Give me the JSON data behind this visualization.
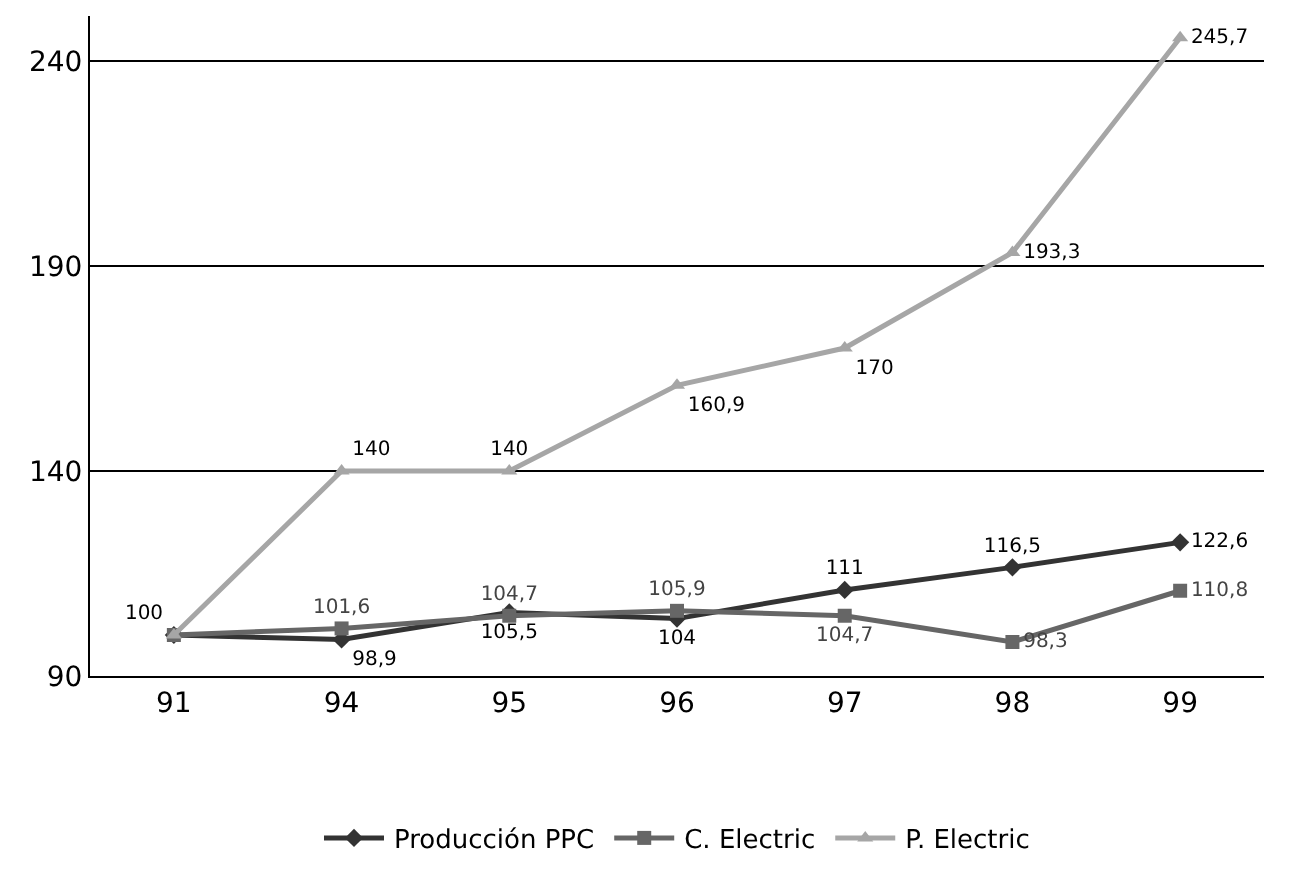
{
  "chart_data": {
    "type": "line",
    "categories": [
      "91",
      "94",
      "95",
      "96",
      "97",
      "98",
      "99"
    ],
    "series": [
      {
        "name": "Producción PPC",
        "color": "#333333",
        "marker": "diamond",
        "values": [
          100,
          98.9,
          105.5,
          104,
          111,
          116.5,
          122.6
        ],
        "value_labels": [
          "100",
          "98,9",
          "105,5",
          "104",
          "111",
          "116,5",
          "122,6"
        ]
      },
      {
        "name": "C. Electric",
        "color": "#666666",
        "marker": "square",
        "values": [
          100,
          101.6,
          104.7,
          105.9,
          104.7,
          98.3,
          110.8
        ],
        "value_labels": [
          null,
          "101,6",
          "104,7",
          "105,9",
          "104,7",
          "98,3",
          "110,8"
        ]
      },
      {
        "name": "P. Electric",
        "color": "#a6a6a6",
        "marker": "triangle",
        "values": [
          100,
          140,
          140,
          160.9,
          170,
          193.3,
          245.7
        ],
        "value_labels": [
          null,
          "140",
          "140",
          "160,9",
          "170",
          "193,3",
          "245,7"
        ]
      }
    ],
    "ylim": [
      90,
      251
    ],
    "yticks": [
      90,
      140,
      190,
      240
    ],
    "grid": "y",
    "legend": "bottom",
    "line_style": "solid"
  }
}
